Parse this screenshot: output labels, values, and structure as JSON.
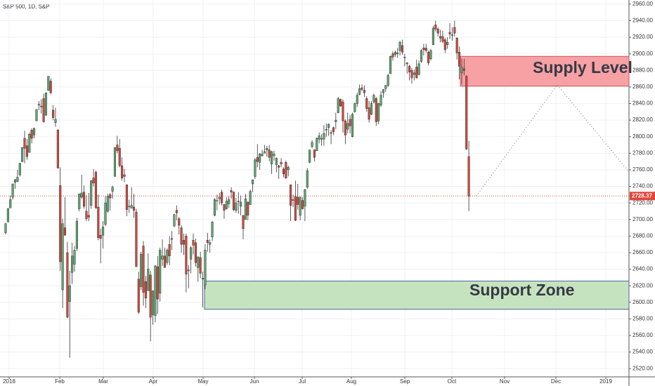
{
  "chart_data": {
    "type": "candlestick",
    "title": "S&P 500, 1D, S&P",
    "ohlc": [
      [
        2684,
        2696,
        2682,
        2695
      ],
      [
        2697,
        2714,
        2697,
        2713
      ],
      [
        2714,
        2729,
        2714,
        2724
      ],
      [
        2727,
        2743,
        2724,
        2743
      ],
      [
        2745,
        2749,
        2737,
        2748
      ],
      [
        2746,
        2760,
        2745,
        2751
      ],
      [
        2754,
        2768,
        2752,
        2768
      ],
      [
        2770,
        2787,
        2769,
        2787
      ],
      [
        2798,
        2807,
        2768,
        2786
      ],
      [
        2789,
        2797,
        2772,
        2776
      ],
      [
        2781,
        2805,
        2781,
        2803
      ],
      [
        2808,
        2810,
        2792,
        2798
      ],
      [
        2802,
        2811,
        2798,
        2810
      ],
      [
        2819,
        2833,
        2819,
        2833
      ],
      [
        2838,
        2843,
        2832,
        2839
      ],
      [
        2836,
        2845,
        2828,
        2837
      ],
      [
        2846,
        2852,
        2817,
        2818
      ],
      [
        2826,
        2853,
        2825,
        2853
      ],
      [
        2856,
        2873,
        2855,
        2873
      ],
      [
        2867,
        2870,
        2851,
        2853
      ],
      [
        2832,
        2838,
        2820,
        2823
      ],
      [
        2817,
        2835,
        2812,
        2821
      ],
      [
        2808,
        2809,
        2762,
        2762
      ],
      [
        2741,
        2763,
        2638,
        2649
      ],
      [
        2615,
        2701,
        2593,
        2695
      ],
      [
        2690,
        2727,
        2681,
        2681
      ],
      [
        2660,
        2673,
        2581,
        2582
      ],
      [
        2601,
        2638,
        2533,
        2620
      ],
      [
        2636,
        2672,
        2622,
        2656
      ],
      [
        2646,
        2668,
        2637,
        2663
      ],
      [
        2665,
        2702,
        2662,
        2698
      ],
      [
        2713,
        2731,
        2710,
        2731
      ],
      [
        2727,
        2754,
        2725,
        2732
      ],
      [
        2733,
        2741,
        2713,
        2716
      ],
      [
        2710,
        2729,
        2698,
        2701
      ],
      [
        2705,
        2732,
        2698,
        2703
      ],
      [
        2717,
        2747,
        2713,
        2747
      ],
      [
        2750,
        2761,
        2740,
        2744
      ],
      [
        2757,
        2759,
        2713,
        2714
      ],
      [
        2715,
        2730,
        2675,
        2678
      ],
      [
        2681,
        2689,
        2647,
        2677
      ],
      [
        2681,
        2698,
        2665,
        2691
      ],
      [
        2694,
        2728,
        2692,
        2720
      ],
      [
        2710,
        2731,
        2708,
        2728
      ],
      [
        2730,
        2732,
        2711,
        2726
      ],
      [
        2734,
        2741,
        2725,
        2739
      ],
      [
        2752,
        2787,
        2752,
        2787
      ],
      [
        2790,
        2801,
        2780,
        2783
      ],
      [
        2786,
        2797,
        2763,
        2765
      ],
      [
        2765,
        2775,
        2747,
        2750
      ],
      [
        2754,
        2761,
        2745,
        2752
      ],
      [
        2742,
        2742,
        2704,
        2712
      ],
      [
        2716,
        2724,
        2708,
        2716
      ],
      [
        2714,
        2739,
        2713,
        2717
      ],
      [
        2715,
        2731,
        2702,
        2711
      ],
      [
        2709,
        2713,
        2643,
        2643
      ],
      [
        2628,
        2637,
        2586,
        2588
      ],
      [
        2619,
        2661,
        2615,
        2658
      ],
      [
        2668,
        2674,
        2596,
        2612
      ],
      [
        2625,
        2632,
        2593,
        2605
      ],
      [
        2614,
        2659,
        2614,
        2640
      ],
      [
        2633,
        2638,
        2553,
        2582
      ],
      [
        2585,
        2614,
        2573,
        2614
      ],
      [
        2584,
        2645,
        2576,
        2644
      ],
      [
        2643,
        2656,
        2586,
        2604
      ],
      [
        2611,
        2666,
        2601,
        2663
      ],
      [
        2652,
        2676,
        2644,
        2656
      ],
      [
        2656,
        2666,
        2642,
        2642
      ],
      [
        2648,
        2665,
        2645,
        2663
      ],
      [
        2670,
        2680,
        2645,
        2656
      ],
      [
        2676,
        2686,
        2663,
        2677
      ],
      [
        2692,
        2707,
        2691,
        2706
      ],
      [
        2711,
        2717,
        2699,
        2708
      ],
      [
        2701,
        2703,
        2682,
        2693
      ],
      [
        2690,
        2693,
        2660,
        2670
      ],
      [
        2675,
        2683,
        2657,
        2670
      ],
      [
        2680,
        2683,
        2612,
        2634
      ],
      [
        2638,
        2645,
        2617,
        2639
      ],
      [
        2652,
        2668,
        2635,
        2666
      ],
      [
        2675,
        2683,
        2658,
        2669
      ],
      [
        2672,
        2677,
        2643,
        2648
      ],
      [
        2642,
        2655,
        2625,
        2655
      ],
      [
        2654,
        2661,
        2629,
        2635
      ],
      [
        2628,
        2637,
        2594,
        2629
      ],
      [
        2621,
        2670,
        2616,
        2663
      ],
      [
        2675,
        2684,
        2661,
        2672
      ],
      [
        2670,
        2676,
        2660,
        2672
      ],
      [
        2679,
        2698,
        2674,
        2697
      ],
      [
        2705,
        2726,
        2704,
        2724
      ],
      [
        2723,
        2730,
        2711,
        2723
      ],
      [
        2725,
        2732,
        2718,
        2727
      ],
      [
        2733,
        2736,
        2717,
        2720
      ],
      [
        2718,
        2719,
        2701,
        2711
      ],
      [
        2713,
        2727,
        2712,
        2722
      ],
      [
        2719,
        2728,
        2714,
        2724
      ],
      [
        2735,
        2739,
        2725,
        2733
      ],
      [
        2733,
        2734,
        2710,
        2712
      ],
      [
        2711,
        2726,
        2708,
        2720
      ],
      [
        2722,
        2733,
        2707,
        2722
      ],
      [
        2716,
        2729,
        2705,
        2721
      ],
      [
        2705,
        2705,
        2676,
        2689
      ],
      [
        2700,
        2731,
        2700,
        2725
      ],
      [
        2721,
        2722,
        2699,
        2705
      ],
      [
        2718,
        2736,
        2718,
        2734
      ],
      [
        2743,
        2748,
        2733,
        2748
      ],
      [
        2752,
        2774,
        2749,
        2772
      ],
      [
        2775,
        2791,
        2763,
        2770
      ],
      [
        2769,
        2780,
        2760,
        2779
      ],
      [
        2777,
        2784,
        2776,
        2779
      ],
      [
        2780,
        2790,
        2780,
        2782
      ],
      [
        2784,
        2789,
        2776,
        2786
      ],
      [
        2784,
        2790,
        2770,
        2775
      ],
      [
        2767,
        2783,
        2755,
        2782
      ],
      [
        2777,
        2783,
        2771,
        2779
      ],
      [
        2766,
        2775,
        2757,
        2774
      ],
      [
        2765,
        2766,
        2749,
        2763
      ],
      [
        2769,
        2774,
        2763,
        2767
      ],
      [
        2761,
        2763,
        2751,
        2755
      ],
      [
        2769,
        2771,
        2749,
        2750
      ],
      [
        2760,
        2765,
        2752,
        2763
      ],
      [
        2742,
        2742,
        2698,
        2717
      ],
      [
        2723,
        2730,
        2715,
        2724
      ],
      [
        2728,
        2747,
        2698,
        2699
      ],
      [
        2727,
        2743,
        2712,
        2718
      ],
      [
        2705,
        2727,
        2699,
        2727
      ],
      [
        2723,
        2727,
        2712,
        2713
      ],
      [
        2716,
        2737,
        2698,
        2736
      ],
      [
        2739,
        2762,
        2737,
        2759
      ],
      [
        2769,
        2784,
        2768,
        2784
      ],
      [
        2788,
        2796,
        2786,
        2793
      ],
      [
        2784,
        2785,
        2770,
        2775
      ],
      [
        2783,
        2799,
        2783,
        2798
      ],
      [
        2797,
        2805,
        2792,
        2801
      ],
      [
        2797,
        2803,
        2789,
        2798
      ],
      [
        2797,
        2814,
        2789,
        2804
      ],
      [
        2808,
        2816,
        2800,
        2809
      ],
      [
        2811,
        2816,
        2801,
        2815
      ],
      [
        2805,
        2808,
        2791,
        2804
      ],
      [
        2811,
        2812,
        2802,
        2806
      ],
      [
        2818,
        2829,
        2809,
        2820
      ],
      [
        2829,
        2848,
        2828,
        2846
      ],
      [
        2845,
        2846,
        2836,
        2837
      ],
      [
        2842,
        2845,
        2805,
        2819
      ],
      [
        2819,
        2821,
        2791,
        2802
      ],
      [
        2809,
        2829,
        2804,
        2816
      ],
      [
        2821,
        2826,
        2804,
        2813
      ],
      [
        2800,
        2829,
        2799,
        2827
      ],
      [
        2830,
        2841,
        2829,
        2840
      ],
      [
        2840,
        2853,
        2836,
        2850
      ],
      [
        2851,
        2863,
        2850,
        2858
      ],
      [
        2859,
        2863,
        2855,
        2857
      ],
      [
        2856,
        2862,
        2848,
        2853
      ],
      [
        2846,
        2849,
        2830,
        2834
      ],
      [
        2835,
        2843,
        2817,
        2821
      ],
      [
        2827,
        2843,
        2826,
        2840
      ],
      [
        2842,
        2852,
        2840,
        2850
      ],
      [
        2846,
        2848,
        2813,
        2818
      ],
      [
        2819,
        2841,
        2815,
        2840
      ],
      [
        2838,
        2855,
        2836,
        2850
      ],
      [
        2853,
        2857,
        2847,
        2857
      ],
      [
        2858,
        2862,
        2854,
        2862
      ],
      [
        2862,
        2876,
        2860,
        2874
      ],
      [
        2876,
        2898,
        2876,
        2897
      ],
      [
        2900,
        2903,
        2892,
        2896
      ],
      [
        2899,
        2904,
        2896,
        2902
      ],
      [
        2900,
        2907,
        2895,
        2901
      ],
      [
        2904,
        2916,
        2898,
        2914
      ],
      [
        2910,
        2917,
        2899,
        2902
      ],
      [
        2896,
        2900,
        2885,
        2896
      ],
      [
        2889,
        2890,
        2876,
        2888
      ],
      [
        2885,
        2887,
        2868,
        2878
      ],
      [
        2880,
        2883,
        2864,
        2871
      ],
      [
        2875,
        2881,
        2868,
        2877
      ],
      [
        2884,
        2893,
        2870,
        2871
      ],
      [
        2875,
        2892,
        2874,
        2888
      ],
      [
        2891,
        2906,
        2889,
        2904
      ],
      [
        2907,
        2912,
        2898,
        2905
      ],
      [
        2907,
        2912,
        2901,
        2904
      ],
      [
        2902,
        2904,
        2886,
        2889
      ],
      [
        2894,
        2906,
        2892,
        2904
      ],
      [
        2911,
        2934,
        2911,
        2931
      ],
      [
        2935,
        2940,
        2927,
        2930
      ],
      [
        2930,
        2932,
        2921,
        2925
      ],
      [
        2921,
        2929,
        2914,
        2919
      ],
      [
        2921,
        2928,
        2913,
        2915
      ],
      [
        2917,
        2919,
        2901,
        2905
      ],
      [
        2911,
        2920,
        2906,
        2914
      ],
      [
        2926,
        2937,
        2918,
        2924
      ],
      [
        2923,
        2932,
        2916,
        2923
      ],
      [
        2932,
        2940,
        2921,
        2925
      ],
      [
        2919,
        2920,
        2893,
        2901
      ],
      [
        2902,
        2909,
        2869,
        2885
      ],
      [
        2877,
        2894,
        2863,
        2884
      ],
      [
        2882,
        2894,
        2874,
        2880
      ],
      [
        2873,
        2874,
        2784,
        2785
      ],
      [
        2776,
        2795,
        2710,
        2728
      ]
    ],
    "up_color": "#5fa872",
    "down_color": "#d8463a",
    "months": [
      "2018",
      "Feb",
      "Mar",
      "Apr",
      "May",
      "Jun",
      "Jul",
      "Aug",
      "Sep",
      "Oct",
      "Nov",
      "Dec",
      "2019"
    ],
    "ylim": [
      2510,
      2965
    ],
    "yticks": [
      {
        "value": 2520,
        "label": "2520.00"
      },
      {
        "value": 2540,
        "label": "2540.00"
      },
      {
        "value": 2560,
        "label": "2560.00"
      },
      {
        "value": 2580,
        "label": "2580.00"
      },
      {
        "value": 2600,
        "label": "2600.00"
      },
      {
        "value": 2620,
        "label": "2620.00"
      },
      {
        "value": 2640,
        "label": "2640.00"
      },
      {
        "value": 2660,
        "label": "2660.00"
      },
      {
        "value": 2680,
        "label": "2680.00"
      },
      {
        "value": 2700,
        "label": "2700.00"
      },
      {
        "value": 2720,
        "label": "2720.00"
      },
      {
        "value": 2740,
        "label": "2740.00"
      },
      {
        "value": 2760,
        "label": "2760.00"
      },
      {
        "value": 2780,
        "label": "2780.00"
      },
      {
        "value": 2800,
        "label": "2800.00"
      },
      {
        "value": 2820,
        "label": "2820.00"
      },
      {
        "value": 2840,
        "label": "2840.00"
      },
      {
        "value": 2860,
        "label": "2860.00"
      },
      {
        "value": 2880,
        "label": "2880.00"
      },
      {
        "value": 2900,
        "label": "2900.00"
      },
      {
        "value": 2920,
        "label": "2920.00"
      },
      {
        "value": 2940,
        "label": "2940.00"
      },
      {
        "value": 2960,
        "label": "2960.00"
      }
    ],
    "last_price": 2728.37,
    "last_price_color": "#e2463a",
    "zones": [
      {
        "label": "Supply Level",
        "range": [
          2861,
          2897
        ],
        "fill": "#f7a1a5",
        "stroke": "#c9585f"
      },
      {
        "label": "Support Zone",
        "range": [
          2591.6,
          2625.7
        ],
        "fill": "#c6e3bf",
        "stroke": "#4a67a0"
      }
    ],
    "grid": true
  }
}
